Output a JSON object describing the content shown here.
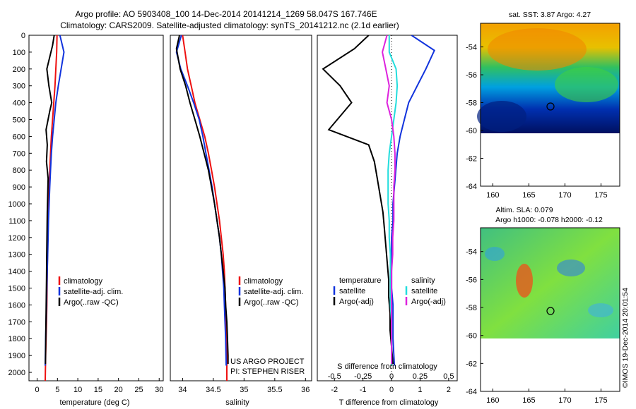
{
  "header": {
    "line1": "Argo profile: AO 5903408_100 14-Dec-2014 20141214_1269 58.047S 167.746E",
    "line2": "Climatology: CARS2009. Satellite-adjusted climatology: synTS_20141212.nc (2.1d earlier)"
  },
  "colors": {
    "climatology": "#ee1111",
    "satellite": "#1133dd",
    "argo": "#000000",
    "argo_salinity_diff": "#dd22dd",
    "satellite_salinity_diff": "#22dddd"
  },
  "project_text": {
    "line1": "US ARGO PROJECT",
    "line2": "PI: STEPHEN RISER"
  },
  "watermark": "©IMOS 19-Dec-2014 20:01:54",
  "chart_data": [
    {
      "type": "line",
      "xlabel": "temperature (deg C)",
      "xlim": [
        -2,
        31
      ],
      "xticks": [
        0,
        5,
        10,
        15,
        20,
        25,
        30
      ],
      "ylim": [
        0,
        2050
      ],
      "yticks": [
        0,
        100,
        200,
        300,
        400,
        500,
        600,
        700,
        800,
        900,
        1000,
        1100,
        1200,
        1300,
        1400,
        1500,
        1600,
        1700,
        1800,
        1900,
        2000
      ],
      "legend": [
        "climatology",
        "satellite-adj. clim.",
        "Argo(..raw -QC)"
      ],
      "series": [
        {
          "name": "climatology",
          "x": [
            4.9,
            4.8,
            4.6,
            4.4,
            4.1,
            3.8,
            3.5,
            3.3,
            3.1,
            2.95,
            2.8,
            2.7,
            2.6,
            2.55,
            2.5,
            2.45,
            2.4,
            2.3,
            2.2,
            2.1,
            2.0
          ],
          "y": [
            0,
            100,
            200,
            300,
            400,
            500,
            600,
            700,
            800,
            900,
            1000,
            1100,
            1200,
            1300,
            1400,
            1500,
            1600,
            1700,
            1800,
            1900,
            2050
          ]
        },
        {
          "name": "satellite-adj. clim.",
          "x": [
            5.6,
            6.6,
            5.9,
            5.2,
            4.6,
            4.2,
            3.8,
            3.5,
            3.3,
            3.1,
            2.95,
            2.8,
            2.7,
            2.6,
            2.5,
            2.4,
            2.3,
            2.2,
            2.1,
            2.0
          ],
          "y": [
            0,
            100,
            200,
            300,
            400,
            500,
            600,
            700,
            800,
            900,
            1000,
            1100,
            1200,
            1300,
            1400,
            1500,
            1600,
            1700,
            1800,
            1960
          ]
        },
        {
          "name": "Argo(..raw -QC)",
          "x": [
            4.2,
            3.8,
            2.4,
            2.9,
            3.6,
            3.1,
            2.2,
            2.5,
            2.3,
            2.7,
            2.6,
            2.5,
            2.45,
            2.4,
            2.35,
            2.3,
            2.25,
            2.2,
            2.15,
            2.1,
            2.05
          ],
          "y": [
            0,
            60,
            200,
            300,
            400,
            450,
            560,
            650,
            750,
            850,
            950,
            1050,
            1150,
            1250,
            1350,
            1450,
            1550,
            1650,
            1750,
            1850,
            1950
          ]
        }
      ]
    },
    {
      "type": "line",
      "xlabel": "salinity",
      "xlim": [
        33.8,
        36.1
      ],
      "xticks": [
        34,
        34.5,
        35,
        35.5,
        36
      ],
      "xticklabels": [
        "34",
        "34.5",
        "35",
        "35.5",
        "36"
      ],
      "ylim": [
        0,
        2050
      ],
      "legend": [
        "climatology",
        "satellite-adj. clim.",
        "Argo(..raw -QC)"
      ],
      "series": [
        {
          "name": "climatology",
          "x": [
            34.0,
            34.04,
            34.08,
            34.14,
            34.2,
            34.28,
            34.36,
            34.42,
            34.47,
            34.52,
            34.56,
            34.6,
            34.63,
            34.66,
            34.68,
            34.69,
            34.7,
            34.71,
            34.72,
            34.72
          ],
          "y": [
            0,
            100,
            200,
            300,
            400,
            500,
            600,
            700,
            800,
            900,
            1000,
            1100,
            1200,
            1300,
            1400,
            1500,
            1600,
            1700,
            1800,
            2050
          ]
        },
        {
          "name": "satellite-adj. clim.",
          "x": [
            33.98,
            33.9,
            33.97,
            34.08,
            34.18,
            34.27,
            34.33,
            34.38,
            34.43,
            34.48,
            34.52,
            34.56,
            34.6,
            34.63,
            34.65,
            34.67,
            34.68,
            34.69,
            34.7,
            34.71
          ],
          "y": [
            0,
            100,
            200,
            300,
            400,
            500,
            600,
            700,
            800,
            900,
            1000,
            1100,
            1200,
            1300,
            1400,
            1500,
            1600,
            1700,
            1800,
            1960
          ]
        },
        {
          "name": "Argo(..raw -QC)",
          "x": [
            33.95,
            33.9,
            33.96,
            34.05,
            34.12,
            34.2,
            34.28,
            34.35,
            34.42,
            34.47,
            34.52,
            34.56,
            34.6,
            34.63,
            34.66,
            34.69,
            34.7,
            34.72,
            34.73,
            34.74,
            34.74
          ],
          "y": [
            0,
            80,
            200,
            300,
            400,
            500,
            600,
            700,
            800,
            900,
            1000,
            1100,
            1200,
            1300,
            1400,
            1500,
            1600,
            1700,
            1800,
            1900,
            1950
          ]
        }
      ]
    },
    {
      "type": "line",
      "xlabel": "T difference from climatology",
      "xlabel_top": "S difference from climatology",
      "xlim": [
        -2.6,
        2.3
      ],
      "xticks": [
        -2,
        -1,
        0,
        1,
        2
      ],
      "sticks": [
        -0.5,
        -0.25,
        0,
        0.25,
        0.5
      ],
      "sticklabels": [
        "-0.5",
        "-0.25",
        "0",
        "0.25",
        "0.5"
      ],
      "ylim": [
        0,
        2050
      ],
      "legend_left_title": "temperature",
      "legend_right_title": "salinity",
      "legend": [
        "satellite",
        "Argo(-adj)",
        "satellite",
        "Argo(-adj)"
      ],
      "series": [
        {
          "name": "satellite",
          "x": [
            0.7,
            1.5,
            1.2,
            0.9,
            0.6,
            0.45,
            0.3,
            0.2,
            0.15,
            0.1,
            0.05,
            0.05,
            0.0,
            0.0,
            0.0,
            0.0,
            0.05,
            0.05,
            0.05,
            0.1
          ],
          "y": [
            0,
            90,
            200,
            300,
            400,
            500,
            600,
            700,
            800,
            900,
            1000,
            1100,
            1200,
            1300,
            1400,
            1500,
            1600,
            1700,
            1800,
            1960
          ]
        },
        {
          "name": "Argo(-adj)",
          "x": [
            -0.8,
            -1.3,
            -2.4,
            -1.8,
            -1.4,
            -2.2,
            -0.8,
            -0.6,
            -0.5,
            -0.4,
            -0.3,
            -0.25,
            -0.2,
            -0.15,
            -0.1,
            -0.1,
            -0.05,
            -0.05,
            0.0,
            0.05
          ],
          "y": [
            0,
            80,
            200,
            300,
            400,
            560,
            650,
            750,
            850,
            950,
            1050,
            1150,
            1250,
            1350,
            1450,
            1550,
            1650,
            1750,
            1850,
            1950
          ]
        },
        {
          "name": "satellite",
          "x": [
            -0.02,
            -0.02,
            0.04,
            0.05,
            0.04,
            0.02,
            0.0,
            -0.02,
            -0.03,
            -0.03,
            -0.03,
            -0.02,
            -0.02,
            -0.01,
            -0.01,
            -0.01,
            -0.01,
            0.0,
            0.0
          ],
          "y": [
            0,
            100,
            200,
            300,
            400,
            500,
            600,
            700,
            800,
            900,
            1000,
            1100,
            1200,
            1300,
            1400,
            1500,
            1600,
            1700,
            1960
          ]
        },
        {
          "name": "Argo(-adj)",
          "x": [
            -0.04,
            -0.08,
            -0.05,
            -0.02,
            -0.04,
            0.0,
            0.02,
            0.03,
            0.03,
            0.02,
            0.02,
            0.02,
            0.01,
            0.01,
            0.0,
            0.0,
            0.0,
            0.0,
            0.0
          ],
          "y": [
            0,
            100,
            200,
            300,
            400,
            500,
            600,
            700,
            800,
            900,
            1000,
            1100,
            1200,
            1300,
            1400,
            1500,
            1600,
            1700,
            1950
          ]
        }
      ]
    },
    {
      "type": "heatmap",
      "title": "sat. SST: 3.87 Argo: 4.27",
      "xlim": [
        158.3,
        177.6
      ],
      "xticks": [
        160,
        165,
        170,
        175
      ],
      "ylim": [
        -64,
        -52.3
      ],
      "yticks": [
        -54,
        -56,
        -58,
        -60,
        -62,
        -64
      ],
      "marker": {
        "lon": 167.746,
        "lat": -58.047
      }
    },
    {
      "type": "heatmap",
      "title": "Altim. SLA: 0.079",
      "subtitle": "Argo h1000: -0.078 h2000: -0.12",
      "xlim": [
        158.3,
        177.6
      ],
      "xticks": [
        160,
        165,
        170,
        175
      ],
      "ylim": [
        -64,
        -52.3
      ],
      "yticks": [
        -54,
        -56,
        -58,
        -60,
        -62,
        -64
      ],
      "marker": {
        "lon": 167.746,
        "lat": -58.047
      }
    }
  ]
}
